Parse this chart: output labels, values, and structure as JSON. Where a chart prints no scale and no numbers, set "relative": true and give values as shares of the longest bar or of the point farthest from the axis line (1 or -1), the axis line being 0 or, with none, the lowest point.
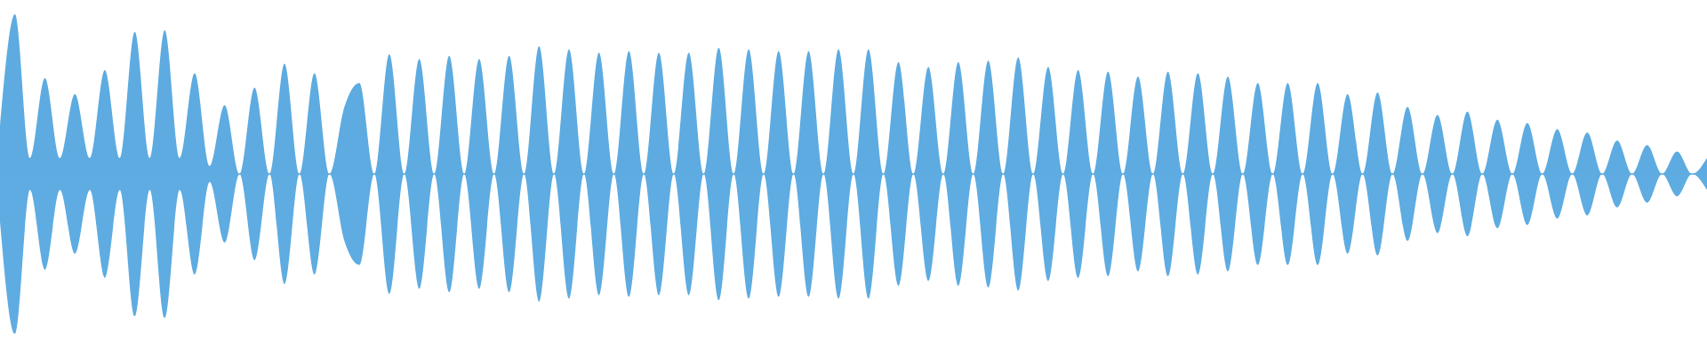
{
  "chart_data": {
    "type": "area",
    "relative": true,
    "ref_lines": [
      {
        "axis": "y",
        "value": 0,
        "color": "#5dabe0"
      }
    ],
    "categories": [
      null,
      null,
      null,
      null,
      null,
      null,
      null,
      null,
      null,
      null,
      null,
      null,
      null,
      null,
      null,
      null,
      null,
      null,
      null,
      null,
      null,
      null,
      null,
      null,
      null,
      null,
      null,
      null,
      null,
      null,
      null,
      null,
      null,
      null,
      null,
      null,
      null,
      null,
      null,
      null,
      null,
      null,
      null,
      null,
      null,
      null,
      null,
      null,
      null,
      null,
      null,
      null,
      null,
      null,
      null,
      null,
      null,
      null,
      null,
      null,
      null,
      null,
      null,
      null,
      null,
      null,
      null,
      null,
      null,
      null,
      null,
      null,
      null,
      null,
      null,
      null,
      null,
      null,
      null,
      null,
      null,
      null,
      null,
      null,
      null,
      null,
      null,
      null,
      null,
      null,
      null,
      null,
      null,
      null,
      null,
      null,
      null,
      null,
      null,
      null,
      null,
      null,
      null,
      null,
      null,
      null,
      null,
      null,
      null,
      null,
      null,
      null,
      null,
      null,
      null
    ],
    "series": [
      {
        "color": "#5dabe0",
        "values": [
          0.3,
          1.0,
          0.1,
          0.6,
          0.1,
          0.5,
          0.1,
          0.65,
          0.1,
          0.89,
          0.1,
          0.9,
          0.1,
          0.63,
          0.05,
          0.43,
          0,
          0.54,
          0,
          0.69,
          0,
          0.63,
          0,
          0.42,
          0.57,
          0,
          0.75,
          0,
          0.72,
          0,
          0.74,
          0,
          0.72,
          0,
          0.74,
          0,
          0.8,
          0,
          0.78,
          0,
          0.76,
          0,
          0.77,
          0,
          0.76,
          0,
          0.76,
          0,
          0.79,
          0,
          0.78,
          0,
          0.77,
          0,
          0.77,
          0,
          0.78,
          0,
          0.78,
          0,
          0.7,
          0,
          0.67,
          0,
          0.7,
          0,
          0.71,
          0,
          0.73,
          0,
          0.67,
          0,
          0.65,
          0,
          0.64,
          0,
          0.61,
          0,
          0.64,
          0,
          0.63,
          0,
          0.61,
          0,
          0.57,
          0,
          0.57,
          0,
          0.57,
          0,
          0.5,
          0,
          0.51,
          0,
          0.42,
          0,
          0.37,
          0,
          0.39,
          0,
          0.34,
          0,
          0.32,
          0,
          0.28,
          0,
          0.26,
          0,
          0.21,
          0,
          0.18,
          0,
          0.14,
          0,
          0.1
        ]
      },
      {
        "color": "#5eace1",
        "values": [
          -0.3,
          -1.0,
          -0.1,
          -0.6,
          -0.1,
          -0.5,
          -0.1,
          -0.65,
          -0.1,
          -0.89,
          -0.1,
          -0.9,
          -0.1,
          -0.63,
          -0.05,
          -0.43,
          0,
          -0.54,
          0,
          -0.69,
          0,
          -0.63,
          0,
          -0.42,
          -0.57,
          0,
          -0.75,
          0,
          -0.72,
          0,
          -0.74,
          0,
          -0.72,
          0,
          -0.74,
          0,
          -0.8,
          0,
          -0.78,
          0,
          -0.76,
          0,
          -0.77,
          0,
          -0.76,
          0,
          -0.76,
          0,
          -0.79,
          0,
          -0.78,
          0,
          -0.77,
          0,
          -0.77,
          0,
          -0.78,
          0,
          -0.78,
          0,
          -0.7,
          0,
          -0.67,
          0,
          -0.7,
          0,
          -0.71,
          0,
          -0.73,
          0,
          -0.67,
          0,
          -0.65,
          0,
          -0.64,
          0,
          -0.61,
          0,
          -0.64,
          0,
          -0.63,
          0,
          -0.61,
          0,
          -0.57,
          0,
          -0.57,
          0,
          -0.57,
          0,
          -0.5,
          0,
          -0.51,
          0,
          -0.42,
          0,
          -0.37,
          0,
          -0.39,
          0,
          -0.34,
          0,
          -0.32,
          0,
          -0.28,
          0,
          -0.26,
          0,
          -0.21,
          0,
          -0.18,
          0,
          -0.14,
          0,
          -0.1
        ]
      }
    ]
  }
}
